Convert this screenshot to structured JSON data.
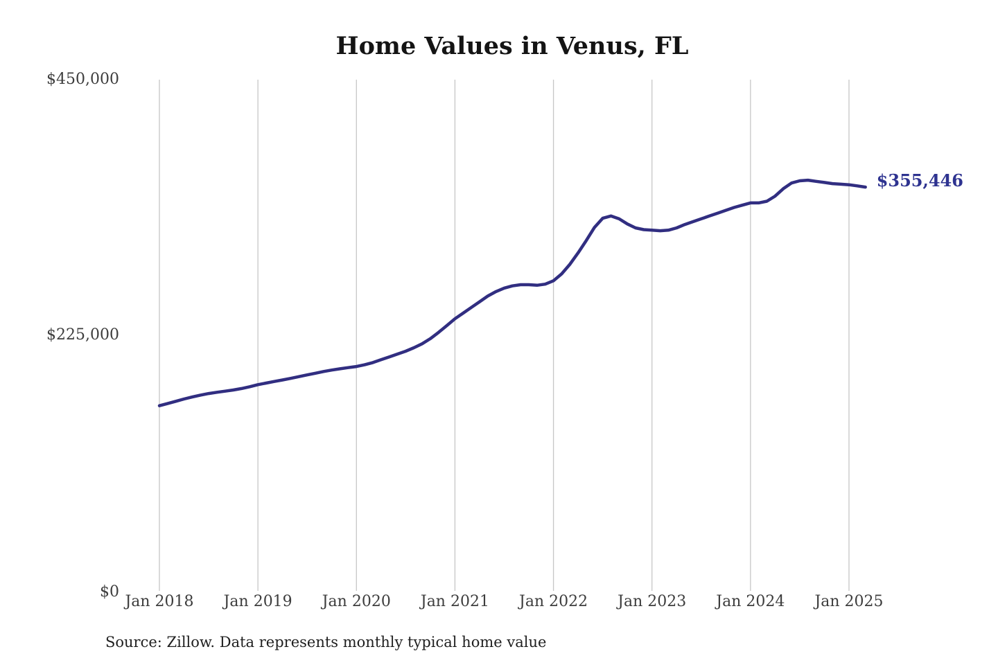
{
  "title": "Home Values in Venus, FL",
  "source_note": "Source: Zillow. Data represents monthly typical home value",
  "colors": {
    "background": "#ffffff",
    "title_text": "#141414",
    "axis_text": "#3d3d3d",
    "gridline": "#c6c6c6",
    "line": "#312e81",
    "end_label": "#2e3390"
  },
  "chart_data": {
    "type": "line",
    "title": "Home Values in Venus, FL",
    "xlabel": "",
    "ylabel": "",
    "ylim": [
      0,
      450000
    ],
    "grid": "vertical-only",
    "legend": "none",
    "frequency": "monthly",
    "x_start": "Jan 2018",
    "x_end": "Mar 2025",
    "x_ticks": [
      "Jan 2018",
      "Jan 2019",
      "Jan 2020",
      "Jan 2021",
      "Jan 2022",
      "Jan 2023",
      "Jan 2024",
      "Jan 2025"
    ],
    "y_ticks": [
      {
        "label": "$450,000",
        "value": 450000
      },
      {
        "label": "$225,000",
        "value": 225000
      },
      {
        "label": "$0",
        "value": 0
      }
    ],
    "end_label": "$355,446",
    "end_value": 355446,
    "series": [
      {
        "name": "Typical home value",
        "values": [
          163000,
          164900,
          166900,
          168900,
          170700,
          172300,
          173700,
          174800,
          175800,
          176800,
          178100,
          179700,
          181500,
          182900,
          184300,
          185700,
          187100,
          188600,
          190100,
          191600,
          193100,
          194400,
          195500,
          196500,
          197500,
          199000,
          201000,
          203500,
          206000,
          208500,
          211000,
          214000,
          217500,
          222000,
          227500,
          233500,
          239500,
          244500,
          249500,
          254500,
          259500,
          263500,
          266500,
          268500,
          269500,
          269500,
          269000,
          270000,
          273000,
          279000,
          287500,
          297500,
          308500,
          320000,
          328000,
          330000,
          327500,
          323000,
          319500,
          318000,
          317500,
          317000,
          317500,
          319500,
          322500,
          325000,
          327500,
          330000,
          332500,
          335000,
          337500,
          339500,
          341500,
          341500,
          343000,
          347500,
          354000,
          359000,
          361000,
          361500,
          360500,
          359500,
          358500,
          358000,
          357500,
          356500,
          355446
        ]
      }
    ]
  }
}
